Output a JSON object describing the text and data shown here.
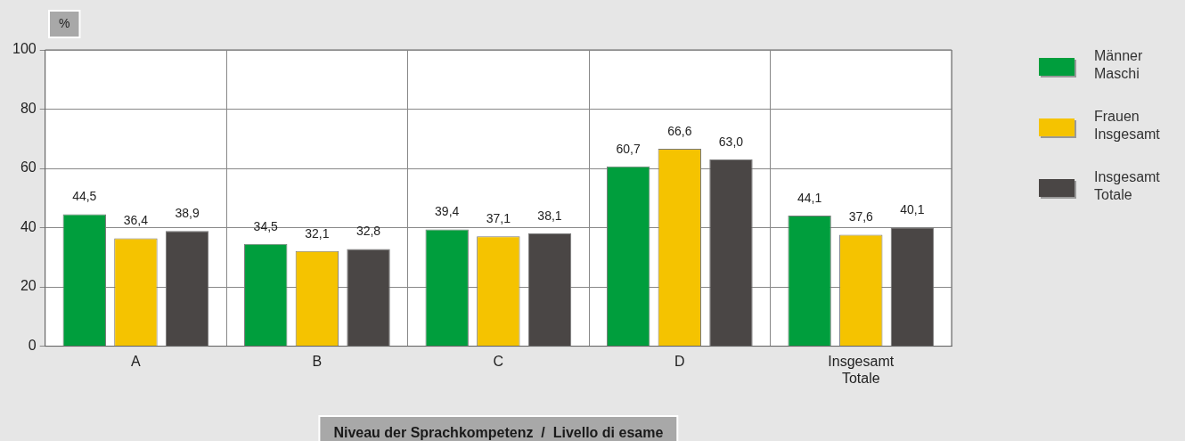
{
  "chart_data": {
    "type": "bar",
    "ylabel": "%",
    "xlabel": "Niveau der Sprachkompetenz  /  Livello di esame",
    "categories": [
      "A",
      "B",
      "C",
      "D",
      "Insgesamt Totale"
    ],
    "series": [
      {
        "name": "Männer Maschi",
        "color": "#009e3d",
        "values": [
          44.5,
          34.5,
          39.4,
          60.7,
          44.1
        ],
        "value_labels": [
          "44,5",
          "34,5",
          "39,4",
          "60,7",
          "44,1"
        ]
      },
      {
        "name": "Frauen Insgesamt",
        "color": "#f5c300",
        "values": [
          36.4,
          32.1,
          37.1,
          66.6,
          37.6
        ],
        "value_labels": [
          "36,4",
          "32,1",
          "37,1",
          "66,6",
          "37,6"
        ]
      },
      {
        "name": "Insgesamt Totale",
        "color": "#4a4645",
        "values": [
          38.9,
          32.8,
          38.1,
          63.0,
          40.1
        ],
        "value_labels": [
          "38,9",
          "32,8",
          "38,1",
          "63,0",
          "40,1"
        ]
      }
    ],
    "ylim": [
      0,
      100
    ],
    "yticks": [
      0,
      20,
      40,
      60,
      80,
      100
    ],
    "grid": true,
    "legend": "right"
  }
}
